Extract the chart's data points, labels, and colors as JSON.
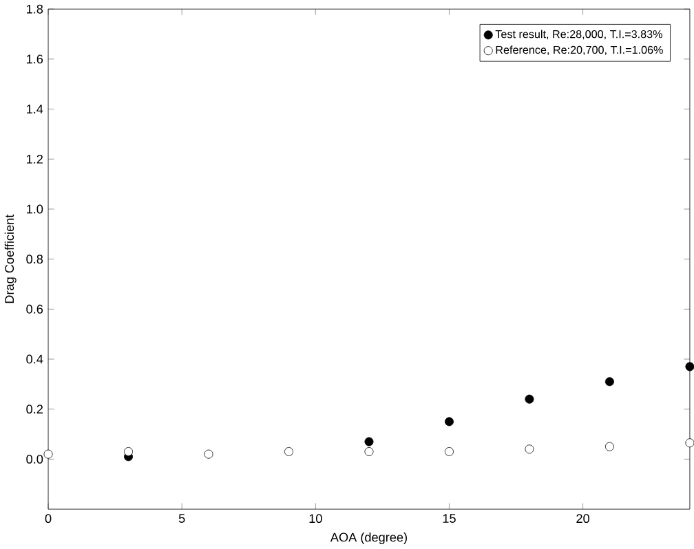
{
  "chart_data": {
    "type": "scatter",
    "xlabel": "AOA (degree)",
    "ylabel": "Drag Coefficient",
    "x": [
      0,
      3,
      6,
      9,
      12,
      15,
      18,
      21,
      24
    ],
    "series": [
      {
        "name": "Test result, Re:28,000, T.I.=3.83%",
        "color": "#000000",
        "marker": "circle",
        "values": [
          null,
          0.01,
          null,
          null,
          0.07,
          0.15,
          0.24,
          0.31,
          0.37
        ]
      },
      {
        "name": "Reference, Re:20,700, T.I.=1.06%",
        "color": "#000000",
        "marker": "circle",
        "values": [
          0.02,
          0.03,
          0.02,
          0.03,
          0.03,
          0.03,
          0.04,
          0.05,
          0.065
        ]
      }
    ],
    "xlim": [
      0,
      24
    ],
    "xticks": [
      0,
      5,
      10,
      15,
      20
    ],
    "ylim": [
      -0.2,
      1.8
    ],
    "yticks": [
      {
        "value": 0,
        "label": "0.0"
      },
      0.2,
      0.4,
      0.6,
      0.8,
      {
        "value": 1,
        "label": "1.0"
      },
      1.2,
      1.4,
      1.6,
      1.8
    ],
    "grid": false,
    "legend": "top right"
  }
}
